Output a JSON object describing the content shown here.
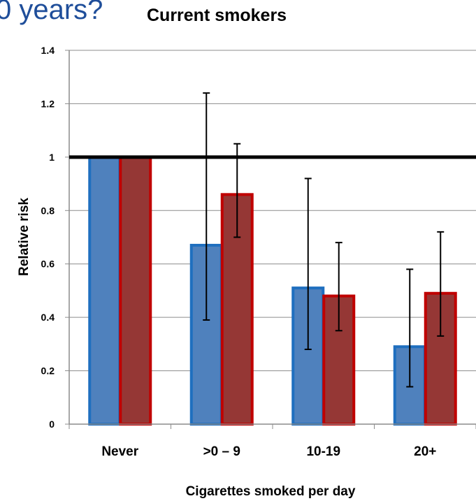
{
  "heading": "0 years?",
  "chart_data": {
    "type": "bar",
    "title": "Current smokers",
    "xlabel": "Cigarettes smoked per day",
    "ylabel": "Relative risk",
    "categories": [
      "Never",
      ">0 – 9",
      "10-19",
      "20+"
    ],
    "ylim": [
      0,
      1.4
    ],
    "yticks": [
      "0",
      "0.2",
      "0.4",
      "0.6",
      "0.8",
      "1",
      "1.2",
      "1.4"
    ],
    "reference_line": 1,
    "grid": true,
    "legend": "none",
    "series": [
      {
        "color": "#4f81bd",
        "edge": "#1f6fbf",
        "values": [
          1.0,
          0.67,
          0.51,
          0.29
        ],
        "ci_low": [
          null,
          0.39,
          0.28,
          0.14
        ],
        "ci_high": [
          null,
          1.24,
          0.92,
          0.58
        ]
      },
      {
        "color": "#953735",
        "edge": "#c00000",
        "values": [
          1.0,
          0.86,
          0.48,
          0.49
        ],
        "ci_low": [
          null,
          0.7,
          0.35,
          0.33
        ],
        "ci_high": [
          null,
          1.05,
          0.68,
          0.72
        ]
      }
    ]
  }
}
